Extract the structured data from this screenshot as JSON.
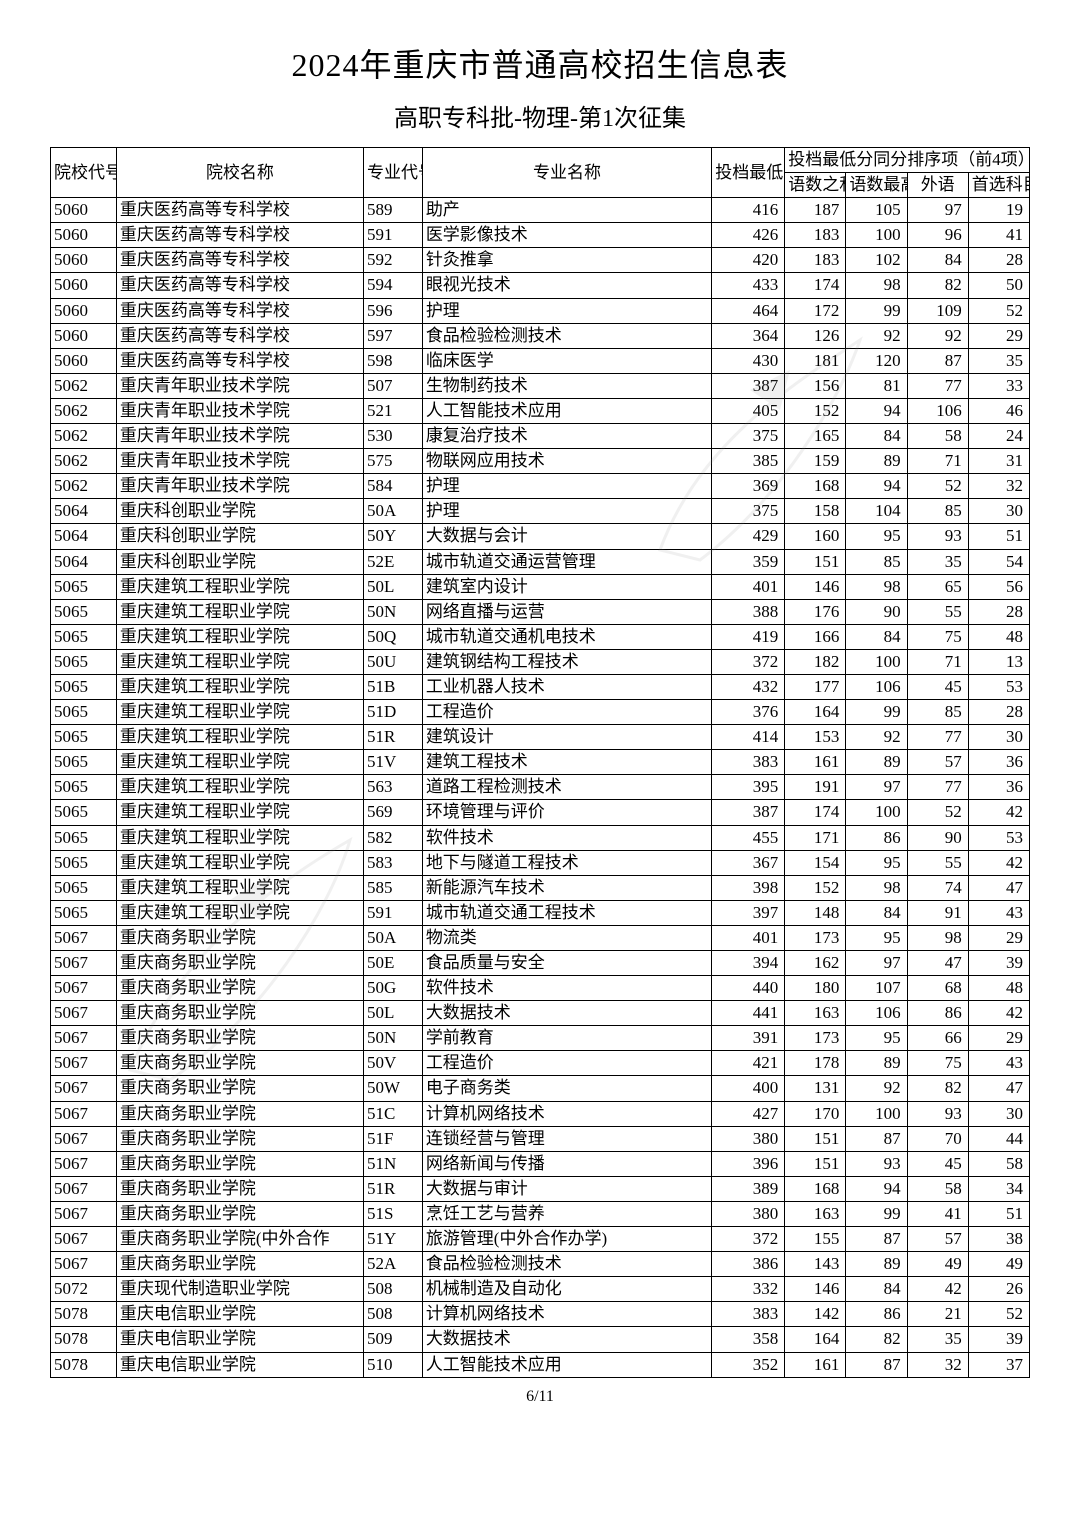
{
  "title": "2024年重庆市普通高校招生信息表",
  "subtitle": "高职专科批-物理-第1次征集",
  "pager": "6/11",
  "header": {
    "school_code": "院校代号",
    "school_name": "院校名称",
    "major_code": "专业代号",
    "major_name": "专业名称",
    "min_score": "投档最低分",
    "tie_group": "投档最低分同分排序项（前4项）",
    "tie1": "语数之和",
    "tie2": "语数最高",
    "tie3": "外语",
    "tie4": "首选科目"
  },
  "columns": [
    "school_code",
    "school_name",
    "major_code",
    "major_name",
    "min_score",
    "t1",
    "t2",
    "t3",
    "t4"
  ],
  "rows": [
    [
      "5060",
      "重庆医药高等专科学校",
      "589",
      "助产",
      "416",
      "187",
      "105",
      "97",
      "19"
    ],
    [
      "5060",
      "重庆医药高等专科学校",
      "591",
      "医学影像技术",
      "426",
      "183",
      "100",
      "96",
      "41"
    ],
    [
      "5060",
      "重庆医药高等专科学校",
      "592",
      "针灸推拿",
      "420",
      "183",
      "102",
      "84",
      "28"
    ],
    [
      "5060",
      "重庆医药高等专科学校",
      "594",
      "眼视光技术",
      "433",
      "174",
      "98",
      "82",
      "50"
    ],
    [
      "5060",
      "重庆医药高等专科学校",
      "596",
      "护理",
      "464",
      "172",
      "99",
      "109",
      "52"
    ],
    [
      "5060",
      "重庆医药高等专科学校",
      "597",
      "食品检验检测技术",
      "364",
      "126",
      "92",
      "92",
      "29"
    ],
    [
      "5060",
      "重庆医药高等专科学校",
      "598",
      "临床医学",
      "430",
      "181",
      "120",
      "87",
      "35"
    ],
    [
      "5062",
      "重庆青年职业技术学院",
      "507",
      "生物制药技术",
      "387",
      "156",
      "81",
      "77",
      "33"
    ],
    [
      "5062",
      "重庆青年职业技术学院",
      "521",
      "人工智能技术应用",
      "405",
      "152",
      "94",
      "106",
      "46"
    ],
    [
      "5062",
      "重庆青年职业技术学院",
      "530",
      "康复治疗技术",
      "375",
      "165",
      "84",
      "58",
      "24"
    ],
    [
      "5062",
      "重庆青年职业技术学院",
      "575",
      "物联网应用技术",
      "385",
      "159",
      "89",
      "71",
      "31"
    ],
    [
      "5062",
      "重庆青年职业技术学院",
      "584",
      "护理",
      "369",
      "168",
      "94",
      "52",
      "32"
    ],
    [
      "5064",
      "重庆科创职业学院",
      "50A",
      "护理",
      "375",
      "158",
      "104",
      "85",
      "30"
    ],
    [
      "5064",
      "重庆科创职业学院",
      "50Y",
      "大数据与会计",
      "429",
      "160",
      "95",
      "93",
      "51"
    ],
    [
      "5064",
      "重庆科创职业学院",
      "52E",
      "城市轨道交通运营管理",
      "359",
      "151",
      "85",
      "35",
      "54"
    ],
    [
      "5065",
      "重庆建筑工程职业学院",
      "50L",
      "建筑室内设计",
      "401",
      "146",
      "98",
      "65",
      "56"
    ],
    [
      "5065",
      "重庆建筑工程职业学院",
      "50N",
      "网络直播与运营",
      "388",
      "176",
      "90",
      "55",
      "28"
    ],
    [
      "5065",
      "重庆建筑工程职业学院",
      "50Q",
      "城市轨道交通机电技术",
      "419",
      "166",
      "84",
      "75",
      "48"
    ],
    [
      "5065",
      "重庆建筑工程职业学院",
      "50U",
      "建筑钢结构工程技术",
      "372",
      "182",
      "100",
      "71",
      "13"
    ],
    [
      "5065",
      "重庆建筑工程职业学院",
      "51B",
      "工业机器人技术",
      "432",
      "177",
      "106",
      "45",
      "53"
    ],
    [
      "5065",
      "重庆建筑工程职业学院",
      "51D",
      "工程造价",
      "376",
      "164",
      "99",
      "85",
      "28"
    ],
    [
      "5065",
      "重庆建筑工程职业学院",
      "51R",
      "建筑设计",
      "414",
      "153",
      "92",
      "77",
      "30"
    ],
    [
      "5065",
      "重庆建筑工程职业学院",
      "51V",
      "建筑工程技术",
      "383",
      "161",
      "89",
      "57",
      "36"
    ],
    [
      "5065",
      "重庆建筑工程职业学院",
      "563",
      "道路工程检测技术",
      "395",
      "191",
      "97",
      "77",
      "36"
    ],
    [
      "5065",
      "重庆建筑工程职业学院",
      "569",
      "环境管理与评价",
      "387",
      "174",
      "100",
      "52",
      "42"
    ],
    [
      "5065",
      "重庆建筑工程职业学院",
      "582",
      "软件技术",
      "455",
      "171",
      "86",
      "90",
      "53"
    ],
    [
      "5065",
      "重庆建筑工程职业学院",
      "583",
      "地下与隧道工程技术",
      "367",
      "154",
      "95",
      "55",
      "42"
    ],
    [
      "5065",
      "重庆建筑工程职业学院",
      "585",
      "新能源汽车技术",
      "398",
      "152",
      "98",
      "74",
      "47"
    ],
    [
      "5065",
      "重庆建筑工程职业学院",
      "591",
      "城市轨道交通工程技术",
      "397",
      "148",
      "84",
      "91",
      "43"
    ],
    [
      "5067",
      "重庆商务职业学院",
      "50A",
      "物流类",
      "401",
      "173",
      "95",
      "98",
      "29"
    ],
    [
      "5067",
      "重庆商务职业学院",
      "50E",
      "食品质量与安全",
      "394",
      "162",
      "97",
      "47",
      "39"
    ],
    [
      "5067",
      "重庆商务职业学院",
      "50G",
      "软件技术",
      "440",
      "180",
      "107",
      "68",
      "48"
    ],
    [
      "5067",
      "重庆商务职业学院",
      "50L",
      "大数据技术",
      "441",
      "163",
      "106",
      "86",
      "42"
    ],
    [
      "5067",
      "重庆商务职业学院",
      "50N",
      "学前教育",
      "391",
      "173",
      "95",
      "66",
      "29"
    ],
    [
      "5067",
      "重庆商务职业学院",
      "50V",
      "工程造价",
      "421",
      "178",
      "89",
      "75",
      "43"
    ],
    [
      "5067",
      "重庆商务职业学院",
      "50W",
      "电子商务类",
      "400",
      "131",
      "92",
      "82",
      "47"
    ],
    [
      "5067",
      "重庆商务职业学院",
      "51C",
      "计算机网络技术",
      "427",
      "170",
      "100",
      "93",
      "30"
    ],
    [
      "5067",
      "重庆商务职业学院",
      "51F",
      "连锁经营与管理",
      "380",
      "151",
      "87",
      "70",
      "44"
    ],
    [
      "5067",
      "重庆商务职业学院",
      "51N",
      "网络新闻与传播",
      "396",
      "151",
      "93",
      "45",
      "58"
    ],
    [
      "5067",
      "重庆商务职业学院",
      "51R",
      "大数据与审计",
      "389",
      "168",
      "94",
      "58",
      "34"
    ],
    [
      "5067",
      "重庆商务职业学院",
      "51S",
      "烹饪工艺与营养",
      "380",
      "163",
      "99",
      "41",
      "51"
    ],
    [
      "5067",
      "重庆商务职业学院(中外合作",
      "51Y",
      "旅游管理(中外合作办学)",
      "372",
      "155",
      "87",
      "57",
      "38"
    ],
    [
      "5067",
      "重庆商务职业学院",
      "52A",
      "食品检验检测技术",
      "386",
      "143",
      "89",
      "49",
      "49"
    ],
    [
      "5072",
      "重庆现代制造职业学院",
      "508",
      "机械制造及自动化",
      "332",
      "146",
      "84",
      "42",
      "26"
    ],
    [
      "5078",
      "重庆电信职业学院",
      "508",
      "计算机网络技术",
      "383",
      "142",
      "86",
      "21",
      "52"
    ],
    [
      "5078",
      "重庆电信职业学院",
      "509",
      "大数据技术",
      "358",
      "164",
      "82",
      "35",
      "39"
    ],
    [
      "5078",
      "重庆电信职业学院",
      "510",
      "人工智能技术应用",
      "352",
      "161",
      "87",
      "32",
      "37"
    ]
  ],
  "style": {
    "background_color": "#ffffff",
    "text_color": "#000000",
    "border_color": "#000000",
    "title_fontsize": 32,
    "subtitle_fontsize": 24,
    "cell_fontsize": 17,
    "watermark_color": "#888888",
    "watermark_opacity": 0.12
  }
}
